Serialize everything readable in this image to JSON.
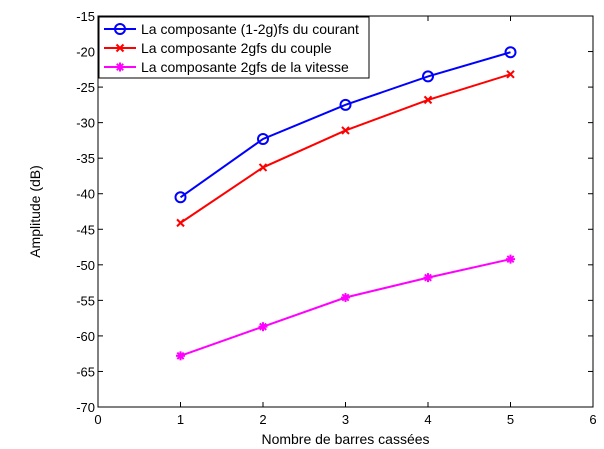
{
  "chart_data": {
    "type": "line",
    "xlabel": "Nombre de barres cassées",
    "ylabel": "Amplitude (dB)",
    "xlim": [
      0,
      6
    ],
    "ylim": [
      -70,
      -15
    ],
    "xticks": [
      0,
      1,
      2,
      3,
      4,
      5,
      6
    ],
    "yticks": [
      -70,
      -65,
      -60,
      -55,
      -50,
      -45,
      -40,
      -35,
      -30,
      -25,
      -20,
      -15
    ],
    "grid": false,
    "legend_position": "top-left",
    "x": [
      1,
      2,
      3,
      4,
      5
    ],
    "series": [
      {
        "name": "La composante (1-2g)fs du courant",
        "values": [
          -40.5,
          -32.3,
          -27.5,
          -23.5,
          -20.1
        ],
        "color": "#0000ff",
        "marker": "circle"
      },
      {
        "name": "La composante 2gfs du couple",
        "values": [
          -44.1,
          -36.3,
          -31.1,
          -26.8,
          -23.2
        ],
        "color": "#ff0000",
        "marker": "x"
      },
      {
        "name": "La composante 2gfs de la vitesse",
        "values": [
          -62.8,
          -58.7,
          -54.6,
          -51.8,
          -49.2
        ],
        "color": "#ff00ff",
        "marker": "star"
      }
    ]
  }
}
